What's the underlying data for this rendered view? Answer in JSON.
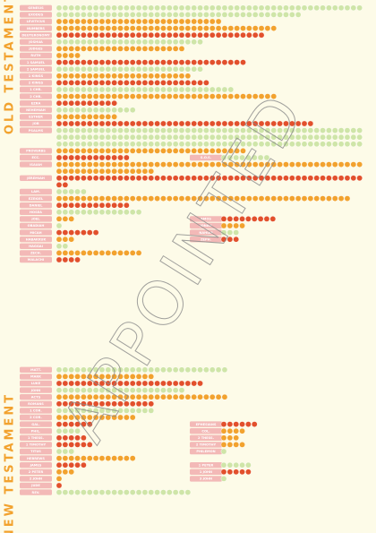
{
  "watermark": "APPOINTED",
  "sections": [
    {
      "title": "OLD TESTAMENT",
      "books": [
        {
          "name": "GENESIS",
          "chapters": 50,
          "color": "#cfe5a8"
        },
        {
          "name": "EXODUS",
          "chapters": 40,
          "color": "#cfe5a8"
        },
        {
          "name": "LEVITICUS",
          "chapters": 27,
          "color": "#f2a22e"
        },
        {
          "name": "NUMBERS",
          "chapters": 36,
          "color": "#f2a22e"
        },
        {
          "name": "DEUTERONOMY",
          "chapters": 34,
          "color": "#e2502c"
        },
        {
          "name": "JOSHUA",
          "chapters": 24,
          "color": "#cfe5a8"
        },
        {
          "name": "JUDGES",
          "chapters": 21,
          "color": "#f2a22e"
        },
        {
          "name": "RUTH",
          "chapters": 4,
          "color": "#f2a22e"
        },
        {
          "name": "1 SAMUEL",
          "chapters": 31,
          "color": "#e2502c"
        },
        {
          "name": "2 SAMUEL",
          "chapters": 24,
          "color": "#cfe5a8"
        },
        {
          "name": "1 KINGS",
          "chapters": 22,
          "color": "#f2a22e"
        },
        {
          "name": "2 KINGS",
          "chapters": 25,
          "color": "#e2502c"
        },
        {
          "name": "1 CHR.",
          "chapters": 29,
          "color": "#cfe5a8"
        },
        {
          "name": "2 CHR.",
          "chapters": 36,
          "color": "#f2a22e"
        },
        {
          "name": "EZRA",
          "chapters": 10,
          "color": "#e2502c"
        },
        {
          "name": "NEHEMIAH",
          "chapters": 13,
          "color": "#cfe5a8"
        },
        {
          "name": "ESTHER",
          "chapters": 10,
          "color": "#f2a22e"
        },
        {
          "name": "JOB",
          "chapters": 42,
          "color": "#e2502c"
        },
        {
          "name": "PSALMS",
          "chapters": 150,
          "color": "#cfe5a8"
        },
        {
          "name": "PROVERBS",
          "chapters": 31,
          "color": "#f2a22e"
        },
        {
          "name": "ECC.",
          "chapters": 12,
          "color": "#e2502c"
        },
        {
          "name": "S.O.S.",
          "chapters": 8,
          "color": "#cfe5a8"
        },
        {
          "name": "ISAIAH",
          "chapters": 66,
          "color": "#f2a22e"
        },
        {
          "name": "JEREMIAH",
          "chapters": 52,
          "color": "#e2502c"
        },
        {
          "name": "LAM.",
          "chapters": 5,
          "color": "#cfe5a8"
        },
        {
          "name": "EZEKIEL",
          "chapters": 48,
          "color": "#f2a22e"
        },
        {
          "name": "DANIEL",
          "chapters": 12,
          "color": "#e2502c"
        },
        {
          "name": "HOSEA",
          "chapters": 14,
          "color": "#cfe5a8"
        },
        {
          "name": "JOEL",
          "chapters": 3,
          "color": "#f2a22e"
        },
        {
          "name": "AMOS",
          "chapters": 9,
          "color": "#e2502c"
        },
        {
          "name": "OBADIAH",
          "chapters": 1,
          "color": "#cfe5a8"
        },
        {
          "name": "JONAH",
          "chapters": 4,
          "color": "#f2a22e"
        },
        {
          "name": "MICAH",
          "chapters": 7,
          "color": "#e2502c"
        },
        {
          "name": "NAHUM",
          "chapters": 3,
          "color": "#cfe5a8"
        },
        {
          "name": "HABAKKUK",
          "chapters": 3,
          "color": "#f2a22e"
        },
        {
          "name": "ZEPH.",
          "chapters": 3,
          "color": "#e2502c"
        },
        {
          "name": "HAGGAI",
          "chapters": 2,
          "color": "#cfe5a8"
        },
        {
          "name": "ZECH.",
          "chapters": 14,
          "color": "#f2a22e"
        },
        {
          "name": "MALACHI",
          "chapters": 4,
          "color": "#e2502c"
        }
      ]
    },
    {
      "title": "NEW TESTAMENT",
      "books": [
        {
          "name": "MATT.",
          "chapters": 28,
          "color": "#cfe5a8"
        },
        {
          "name": "MARK",
          "chapters": 16,
          "color": "#f2a22e"
        },
        {
          "name": "LUKE",
          "chapters": 24,
          "color": "#e2502c"
        },
        {
          "name": "JOHN",
          "chapters": 21,
          "color": "#cfe5a8"
        },
        {
          "name": "ACTS",
          "chapters": 28,
          "color": "#f2a22e"
        },
        {
          "name": "ROMANS",
          "chapters": 16,
          "color": "#e2502c"
        },
        {
          "name": "1 COR.",
          "chapters": 16,
          "color": "#cfe5a8"
        },
        {
          "name": "2 COR.",
          "chapters": 13,
          "color": "#f2a22e"
        },
        {
          "name": "GAL.",
          "chapters": 6,
          "color": "#e2502c"
        },
        {
          "name": "EPHESIANS",
          "chapters": 6,
          "color": "#e2502c"
        },
        {
          "name": "PHIL.",
          "chapters": 4,
          "color": "#cfe5a8"
        },
        {
          "name": "COL.",
          "chapters": 4,
          "color": "#f2a22e"
        },
        {
          "name": "1 THESS.",
          "chapters": 5,
          "color": "#e2502c"
        },
        {
          "name": "2 THESS.",
          "chapters": 3,
          "color": "#f2a22e"
        },
        {
          "name": "1 TIMOTHY",
          "chapters": 6,
          "color": "#e2502c"
        },
        {
          "name": "2 TIMOTHY",
          "chapters": 4,
          "color": "#f2a22e"
        },
        {
          "name": "TITUS",
          "chapters": 3,
          "color": "#cfe5a8"
        },
        {
          "name": "PHILEMON",
          "chapters": 1,
          "color": "#cfe5a8"
        },
        {
          "name": "HEBREWS",
          "chapters": 13,
          "color": "#f2a22e"
        },
        {
          "name": "JAMES",
          "chapters": 5,
          "color": "#e2502c"
        },
        {
          "name": "1 PETER",
          "chapters": 5,
          "color": "#cfe5a8"
        },
        {
          "name": "2 PETER",
          "chapters": 3,
          "color": "#f2a22e"
        },
        {
          "name": "1 JOHN",
          "chapters": 5,
          "color": "#e2502c"
        },
        {
          "name": "2 JOHN",
          "chapters": 1,
          "color": "#f2a22e"
        },
        {
          "name": "3 JOHN",
          "chapters": 1,
          "color": "#cfe5a8"
        },
        {
          "name": "JUDE",
          "chapters": 1,
          "color": "#e2502c"
        },
        {
          "name": "REV.",
          "chapters": 22,
          "color": "#cfe5a8"
        }
      ]
    }
  ]
}
